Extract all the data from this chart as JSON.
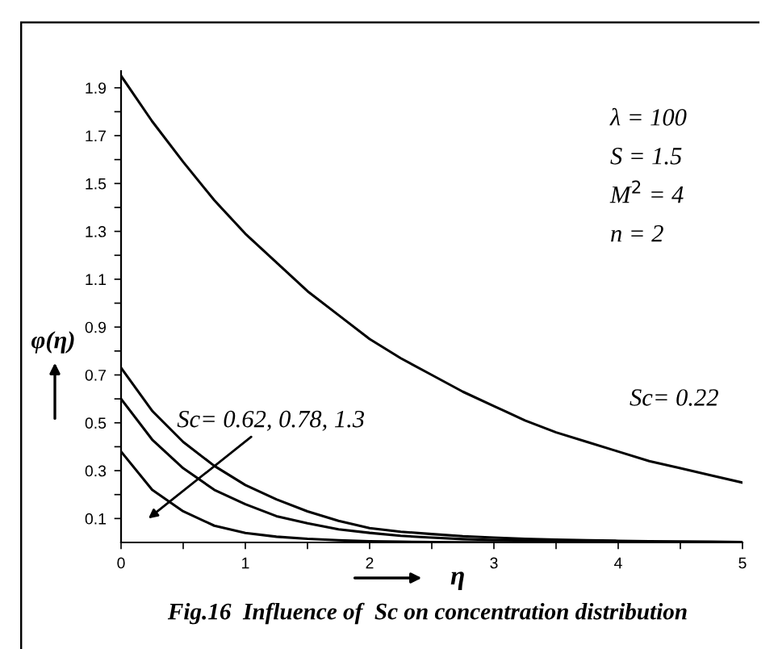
{
  "chart_data": {
    "type": "line",
    "xlabel": "η",
    "ylabel": "φ(η)",
    "x": [
      0,
      0.25,
      0.5,
      0.75,
      1,
      1.25,
      1.5,
      1.75,
      2,
      2.25,
      2.5,
      2.75,
      3,
      3.25,
      3.5,
      3.75,
      4,
      4.25,
      4.5,
      4.75,
      5
    ],
    "series": [
      {
        "color": "#000000",
        "values": [
          1.95,
          1.76,
          1.59,
          1.43,
          1.29,
          1.17,
          1.05,
          0.95,
          0.85,
          0.77,
          0.7,
          0.63,
          0.57,
          0.51,
          0.46,
          0.42,
          0.38,
          0.34,
          0.31,
          0.28,
          0.25
        ]
      },
      {
        "color": "#000000",
        "values": [
          0.73,
          0.55,
          0.42,
          0.32,
          0.24,
          0.18,
          0.13,
          0.09,
          0.06,
          0.045,
          0.035,
          0.026,
          0.02,
          0.015,
          0.012,
          0.009,
          0.007,
          0.005,
          0.004,
          0.003,
          0.002
        ]
      },
      {
        "color": "#000000",
        "values": [
          0.6,
          0.43,
          0.31,
          0.22,
          0.16,
          0.11,
          0.08,
          0.055,
          0.04,
          0.028,
          0.02,
          0.014,
          0.01,
          0.008,
          0.006,
          0.004,
          0.003,
          0.002,
          0.002,
          0.001,
          0.001
        ]
      },
      {
        "color": "#000000",
        "values": [
          0.38,
          0.22,
          0.13,
          0.07,
          0.04,
          0.024,
          0.015,
          0.009,
          0.005,
          0.003,
          0.002,
          0.001,
          0.001,
          0,
          0,
          0,
          0,
          0,
          0,
          0,
          0
        ]
      }
    ],
    "xlim": [
      0,
      5
    ],
    "xticks": [
      0,
      {
        "value": 0.5,
        "label": null
      },
      1,
      {
        "value": 1.5,
        "label": null
      },
      2,
      {
        "value": 2.5,
        "label": null
      },
      3,
      {
        "value": 3.5,
        "label": null
      },
      4,
      {
        "value": 4.5,
        "label": null
      },
      5
    ],
    "ylim": [
      0,
      1.97
    ],
    "yticks": [
      0.1,
      {
        "value": 0.2,
        "label": null
      },
      0.3,
      {
        "value": 0.4,
        "label": null
      },
      0.5,
      {
        "value": 0.6,
        "label": null
      },
      0.7,
      {
        "value": 0.8,
        "label": null
      },
      0.9,
      {
        "value": 1.0,
        "label": null
      },
      1.1,
      {
        "value": 1.2,
        "label": null
      },
      1.3,
      {
        "value": 1.4,
        "label": null
      },
      1.5,
      {
        "value": 1.6,
        "label": null
      },
      1.7,
      {
        "value": 1.8,
        "label": null
      },
      1.9
    ],
    "grid": false,
    "legend": false,
    "marker": "none",
    "line_style": "solid",
    "annotations": [
      "λ = 100",
      "S = 1.5",
      "M$^{2}$ = 4",
      "n = 2",
      "Sc= 0.62, 0.78, 1.3",
      "Sc= 0.22",
      "Fig.16  Influence of  Sc on concentration distribution"
    ]
  }
}
